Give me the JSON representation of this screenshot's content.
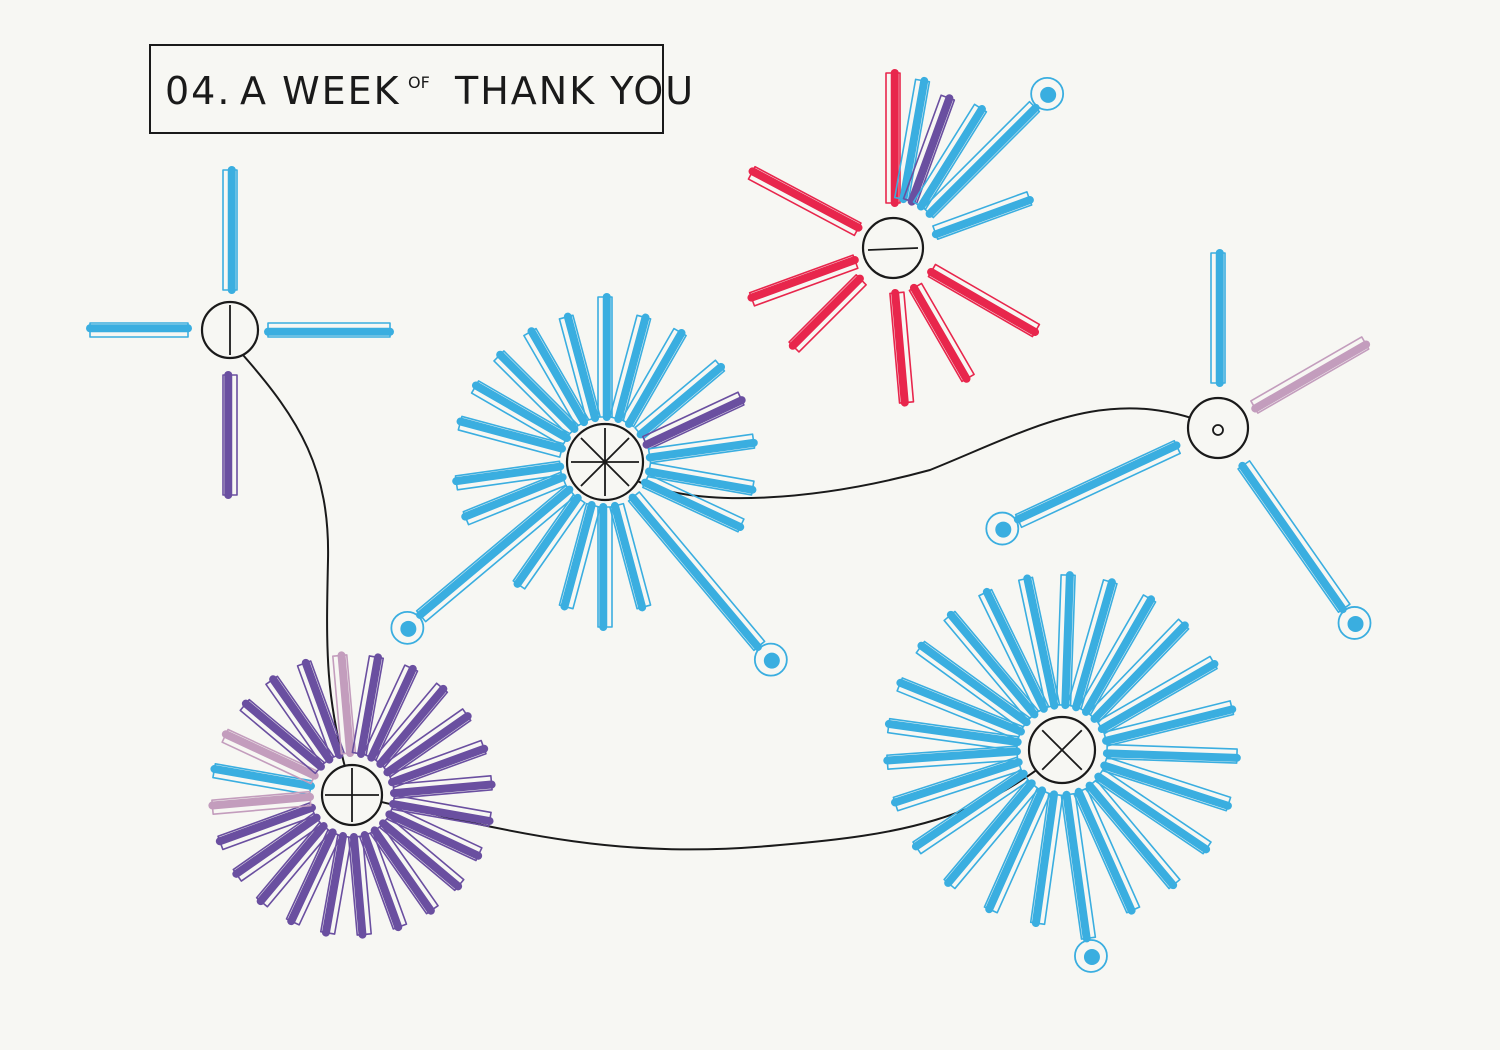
{
  "title": {
    "prefix": "04.",
    "a_week": "A WEEK",
    "of": "OF",
    "thank_you": "THANK YOU"
  },
  "colors": {
    "background": "#f7f7f3",
    "ink": "#1a1a1a",
    "blue": "#3aaee0",
    "purple": "#6a4fa0",
    "red": "#e8264c",
    "mauve": "#c39dbd"
  },
  "nodes": [
    {
      "id": "node-cross",
      "glyph": "vertical-line",
      "colors": [
        "blue",
        "blue",
        "purple",
        "blue"
      ]
    },
    {
      "id": "node-star-center",
      "glyph": "asterisk",
      "colors": [
        "blue",
        "purple"
      ]
    },
    {
      "id": "node-red-burst",
      "glyph": "horizontal-line",
      "colors": [
        "red",
        "blue",
        "purple"
      ]
    },
    {
      "id": "node-small-o",
      "glyph": "small-circle",
      "colors": [
        "blue",
        "mauve"
      ]
    },
    {
      "id": "node-purple-burst",
      "glyph": "plus",
      "colors": [
        "purple",
        "mauve",
        "blue"
      ]
    },
    {
      "id": "node-blue-x",
      "glyph": "x",
      "colors": [
        "blue"
      ]
    }
  ],
  "connections": [
    [
      "node-cross",
      "node-purple-burst"
    ],
    [
      "node-purple-burst",
      "node-blue-x"
    ],
    [
      "node-star-center",
      "node-small-o"
    ]
  ]
}
